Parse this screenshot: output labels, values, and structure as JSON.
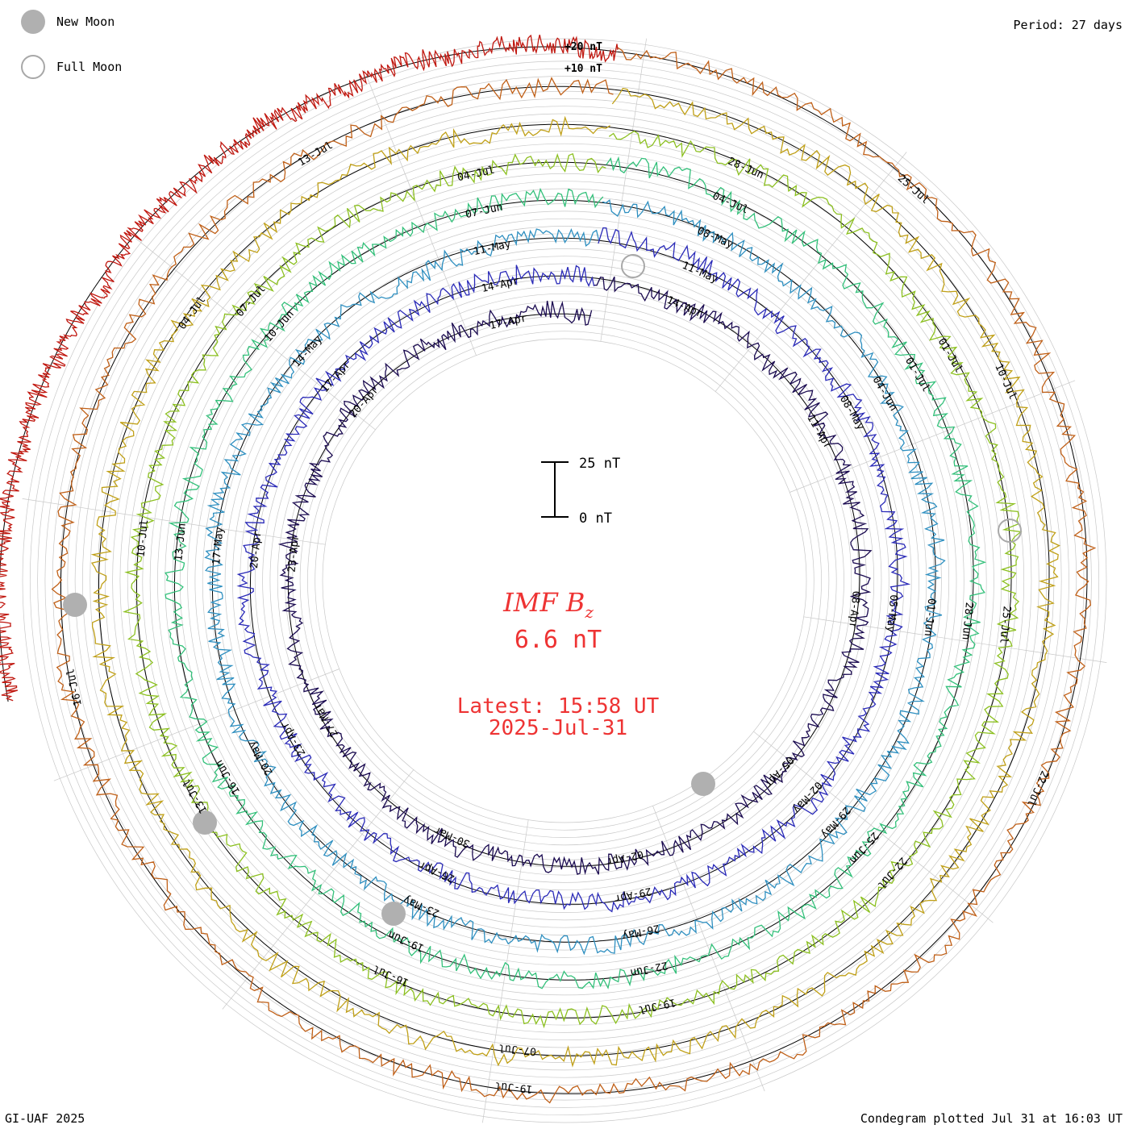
{
  "legend": {
    "new_moon_label": "New Moon",
    "full_moon_label": "Full Moon"
  },
  "period_label": "Period: 27 days",
  "credit": "GI-UAF 2025",
  "plotted_label": "Condegram plotted Jul 31 at 16:03 UT",
  "center": {
    "title_main": "IMF B",
    "title_sub": "z",
    "value": "6.6 nT",
    "latest_label": "Latest: 15:58 UT",
    "latest_date": "2025-Jul-31"
  },
  "scale_bar": {
    "top_label": "25 nT",
    "bottom_label": "0 nT"
  },
  "axis": {
    "plus20": "+20 nT",
    "plus10": "+10 nT"
  },
  "colors": {
    "new_moon": "#b0b0b0",
    "full_moon_stroke": "#a8a8a8",
    "center_text": "#ee3333",
    "grid": "#c8c8c8",
    "zero_circle": "#000000"
  },
  "chart_data": {
    "type": "line",
    "subtype": "condegram-spiral",
    "quantity": "IMF Bz (nT)",
    "period_days": 27,
    "end_date": "2025-07-31",
    "rotations": [
      {
        "color": "#1a0a50",
        "date_labels": [
          "17-Apr",
          "20-Apr",
          "23-Apr",
          "27-Mar",
          "30-Mar",
          "02-Apr",
          "05-Apr",
          "08-Apr",
          "11-Apr",
          "14-Apr"
        ]
      },
      {
        "color": "#2a2ab8",
        "date_labels": [
          "14-Apr",
          "17-Apr",
          "20-Apr",
          "23-Apr",
          "26-Apr",
          "29-Apr",
          "02-May",
          "05-May",
          "08-May",
          "11-May"
        ]
      },
      {
        "color": "#2e8fc0",
        "date_labels": [
          "11-May",
          "14-May",
          "17-May",
          "20-May",
          "23-May",
          "26-May",
          "29-May",
          "01-Jun",
          "04-Jun",
          "08-May"
        ]
      },
      {
        "color": "#33c07a",
        "date_labels": [
          "07-Jun",
          "10-Jun",
          "13-Jun",
          "16-Jun",
          "19-Jun",
          "22-Jun",
          "25-Jun",
          "28-Jun",
          "01-Jul",
          "04-Jul"
        ]
      },
      {
        "color": "#8cc020",
        "date_labels": [
          "04-Jul",
          "07-Jul",
          "10-Jul",
          "13-Jul",
          "16-Jul",
          "19-Jul",
          "22-Jul",
          "25-Jul",
          "01-Jul",
          "28-Jun"
        ]
      },
      {
        "color": "#c0a018",
        "date_labels": [
          "04-Jul",
          "07-Jul",
          "10-Jul"
        ]
      },
      {
        "color": "#c06018",
        "date_labels": [
          "13-Jul",
          "16-Jul",
          "19-Jul",
          "22-Jul",
          "25-Jul"
        ]
      },
      {
        "color": "#c01810",
        "date_labels": []
      }
    ]
  }
}
